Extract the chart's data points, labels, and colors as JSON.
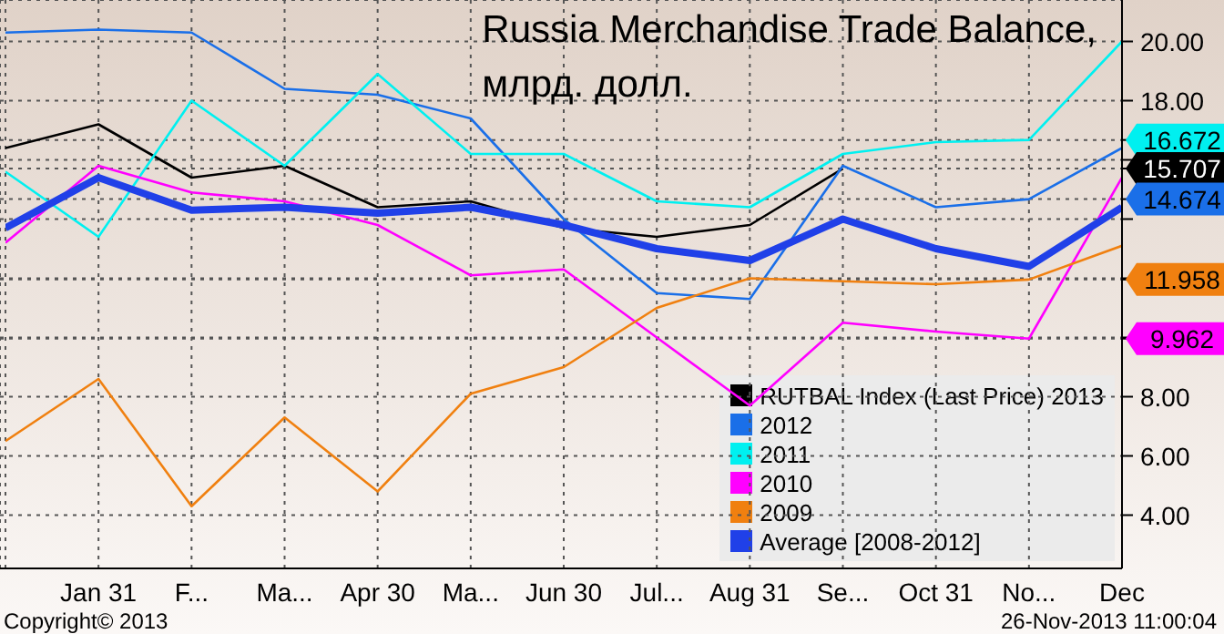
{
  "chart_data": {
    "type": "line",
    "title": "Russia Merchandise Trade Balance,\nмлрд. долл.",
    "categories": [
      null,
      "Jan 31",
      "F...",
      "Ma...",
      "Apr 30",
      "Ma...",
      "Jun 30",
      "Jul...",
      "Aug 31",
      "Se...",
      "Oct 31",
      "No...",
      "Dec"
    ],
    "series": [
      {
        "name": "RUTBAL Index (Last Price) 2013",
        "color": "#000000",
        "values": [
          16.4,
          17.2,
          15.4,
          15.8,
          14.4,
          14.6,
          13.7,
          13.4,
          13.8,
          15.707,
          null,
          null,
          null
        ]
      },
      {
        "name": "2012",
        "color": "#1a6fe8",
        "values": [
          20.3,
          20.4,
          20.3,
          18.4,
          18.2,
          17.4,
          14.0,
          11.5,
          11.3,
          15.8,
          14.4,
          14.674,
          16.4
        ]
      },
      {
        "name": "2011",
        "color": "#00f0f0",
        "values": [
          15.6,
          13.4,
          18.0,
          15.8,
          18.9,
          16.2,
          16.2,
          14.6,
          14.4,
          16.2,
          16.6,
          16.672,
          20.0
        ]
      },
      {
        "name": "2010",
        "color": "#ff00ff",
        "values": [
          13.2,
          15.8,
          14.9,
          14.6,
          13.8,
          12.1,
          12.3,
          10.0,
          7.7,
          10.5,
          10.2,
          9.962,
          15.4
        ]
      },
      {
        "name": "2009",
        "color": "#f08010",
        "values": [
          6.5,
          8.6,
          4.3,
          7.3,
          4.8,
          8.1,
          9.0,
          11.0,
          12.0,
          11.9,
          11.8,
          11.958,
          13.1
        ]
      },
      {
        "name": "Average [2008-2012]",
        "color": "#2040e8",
        "values": [
          13.7,
          15.4,
          14.3,
          14.4,
          14.2,
          14.4,
          13.8,
          13.0,
          12.6,
          14.0,
          13.0,
          12.4,
          14.4
        ]
      }
    ],
    "ylim": [
      2.2,
      21.4
    ],
    "yticks": [
      {
        "value": 4,
        "label": "4.00"
      },
      {
        "value": 6,
        "label": "6.00"
      },
      {
        "value": 8,
        "label": "8.00"
      },
      {
        "value": 10,
        "label": null
      },
      {
        "value": 12,
        "label": null
      },
      {
        "value": 14,
        "label": null
      },
      {
        "value": 16,
        "label": null
      },
      {
        "value": 16.672,
        "label": "16.672"
      },
      {
        "value": 15.707,
        "label": "15.707"
      },
      {
        "value": 14.674,
        "label": "14.674"
      },
      {
        "value": 11.958,
        "label": "11.958"
      },
      {
        "value": 9.962,
        "label": "9.962"
      },
      {
        "value": 18,
        "label": "18.00"
      },
      {
        "value": 20,
        "label": "20.00"
      }
    ],
    "grid": true,
    "legend": "bottom right",
    "marker": "none",
    "line_style": "solid",
    "annotations": [
      "Copyright© 2013",
      "26-Nov-2013 11:00:04"
    ]
  }
}
